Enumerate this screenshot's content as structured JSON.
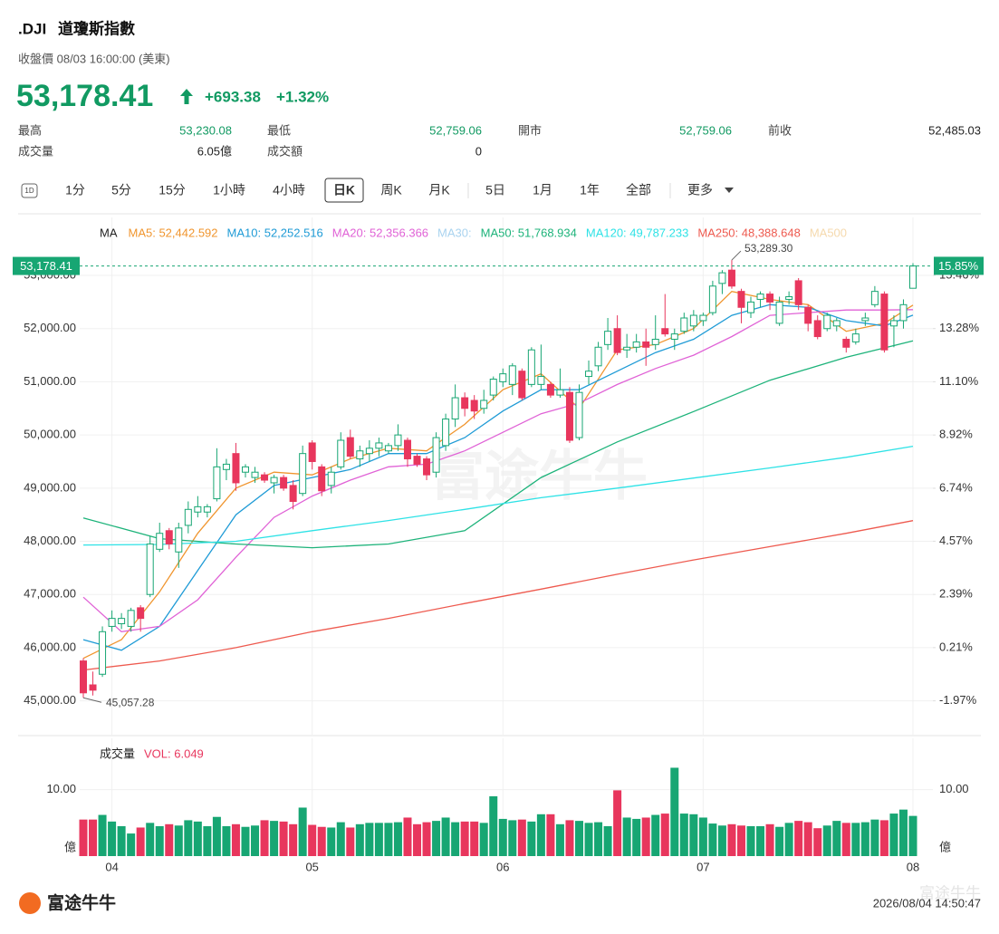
{
  "header": {
    "symbol": ".DJI",
    "name": "道瓊斯指數",
    "subtitle": "收盤價 08/03 16:00:00 (美東)",
    "change": "+693.38",
    "change_pct": "+1.32%",
    "stats": [
      {
        "label": "最高",
        "value": "53,230.08"
      },
      {
        "label": "最低",
        "value": "52,759.06"
      },
      {
        "label": "開市",
        "value": "52,759.06"
      },
      {
        "label": "前收",
        "value": "52,485.03"
      },
      {
        "label": "成交量",
        "value": "6.05億"
      },
      {
        "label": "成交額",
        "value": "0"
      }
    ]
  },
  "toolbar": {
    "icon": "1D",
    "tabs": [
      "1分",
      "5分",
      "15分",
      "1小時",
      "4小時",
      "日K",
      "周K",
      "月K",
      "5日",
      "1月",
      "1年",
      "全部",
      "更多"
    ],
    "active_tab": "日K"
  },
  "chart_data": {
    "type": "candlestick",
    "ma_title": "MA",
    "categories": [
      null,
      null,
      null,
      "04",
      null,
      null,
      null,
      null,
      null,
      null,
      null,
      null,
      null,
      null,
      null,
      null,
      null,
      null,
      null,
      null,
      null,
      null,
      null,
      null,
      "05",
      null,
      null,
      null,
      null,
      null,
      null,
      null,
      null,
      null,
      null,
      null,
      null,
      null,
      null,
      null,
      null,
      null,
      null,
      null,
      "06",
      null,
      null,
      null,
      null,
      null,
      null,
      null,
      null,
      null,
      null,
      null,
      null,
      null,
      null,
      null,
      null,
      null,
      null,
      null,
      null,
      "07",
      null,
      null,
      null,
      null,
      null,
      null,
      null,
      null,
      null,
      null,
      null,
      null,
      null,
      null,
      null,
      null,
      null,
      null,
      null,
      null,
      null,
      "08"
    ],
    "open": [
      45750,
      45300,
      45500,
      46400,
      46450,
      46400,
      46750,
      47000,
      47850,
      48200,
      47800,
      48300,
      48550,
      48550,
      48800,
      49350,
      49650,
      49300,
      49200,
      49250,
      49100,
      49200,
      49050,
      48900,
      49850,
      49400,
      49050,
      49400,
      49950,
      49550,
      49650,
      49750,
      49700,
      49800,
      49900,
      49600,
      49550,
      49300,
      49800,
      50300,
      50700,
      50650,
      50500,
      50750,
      51000,
      50950,
      51200,
      50950,
      50950,
      50950,
      50750,
      50800,
      49950,
      51100,
      51300,
      51700,
      52000,
      51600,
      51650,
      51750,
      51700,
      52000,
      51800,
      51950,
      52050,
      52150,
      52300,
      52850,
      53100,
      52700,
      52300,
      52550,
      52650,
      52100,
      52550,
      52900,
      52400,
      52150,
      52000,
      52050,
      51800,
      51750,
      52150,
      52450,
      52650,
      52050,
      52150,
      52759.06
    ],
    "close": [
      45150,
      45200,
      46300,
      46550,
      46550,
      46700,
      46550,
      47950,
      48150,
      47950,
      48250,
      48600,
      48650,
      48650,
      49400,
      49450,
      49100,
      49400,
      49300,
      49150,
      49200,
      49000,
      48750,
      49650,
      49500,
      48950,
      49300,
      49900,
      49600,
      49700,
      49750,
      49850,
      49800,
      50000,
      49550,
      49450,
      49250,
      49950,
      50300,
      50700,
      50500,
      50450,
      50650,
      51050,
      51150,
      51300,
      50700,
      51600,
      51100,
      50750,
      50850,
      49900,
      50800,
      51200,
      51650,
      51950,
      51550,
      51650,
      51750,
      51650,
      51800,
      51900,
      51900,
      52200,
      52250,
      52250,
      52800,
      53050,
      52800,
      52400,
      52500,
      52650,
      52500,
      52500,
      52600,
      52450,
      52100,
      51850,
      52250,
      52150,
      51650,
      51900,
      52200,
      52700,
      51600,
      52150,
      52450,
      53178.41
    ],
    "high": [
      45800,
      45550,
      46400,
      46700,
      46650,
      46750,
      46800,
      48100,
      48350,
      48250,
      48350,
      48750,
      48850,
      48700,
      49750,
      49550,
      49850,
      49450,
      49400,
      49300,
      49250,
      49250,
      49150,
      49800,
      49900,
      49450,
      49400,
      50050,
      50100,
      49800,
      49900,
      49950,
      49850,
      50200,
      49950,
      49650,
      49600,
      50050,
      50400,
      50950,
      50800,
      50750,
      50850,
      51100,
      51250,
      51350,
      51250,
      51650,
      51700,
      51000,
      51250,
      50900,
      50950,
      51400,
      51750,
      52200,
      52250,
      51900,
      51900,
      52000,
      52250,
      52650,
      52000,
      52300,
      52350,
      52300,
      52900,
      53100,
      53289.3,
      52750,
      52600,
      52700,
      52700,
      52600,
      52700,
      52950,
      52450,
      52250,
      52300,
      52200,
      51850,
      52000,
      52300,
      52800,
      52700,
      52250,
      52550,
      53230.08
    ],
    "low": [
      45057.28,
      45100,
      45450,
      46300,
      46350,
      46300,
      46300,
      46950,
      47800,
      47850,
      47500,
      48150,
      48450,
      48450,
      48750,
      49150,
      48950,
      49200,
      49100,
      49100,
      48900,
      48950,
      48600,
      48850,
      49350,
      48850,
      48900,
      49350,
      49550,
      49400,
      49500,
      49600,
      49650,
      49700,
      49400,
      49400,
      49150,
      49200,
      49700,
      50150,
      50350,
      50300,
      50400,
      50650,
      50900,
      50750,
      50650,
      50900,
      50850,
      50700,
      50700,
      49850,
      49900,
      50950,
      51200,
      51600,
      51500,
      51450,
      51550,
      51300,
      51600,
      51850,
      51600,
      51900,
      51950,
      52050,
      52250,
      52650,
      52750,
      52100,
      52200,
      52400,
      52350,
      52050,
      52450,
      52350,
      51950,
      51800,
      51950,
      51950,
      51550,
      51700,
      52050,
      52400,
      51550,
      51650,
      52000,
      52759.06
    ],
    "up_color": "#17a673",
    "down_color": "#e8365d",
    "high_label": "53,289.30",
    "low_label": "45,057.28",
    "last_price": {
      "value": 53178.41,
      "label": "53,178.41"
    },
    "last_change_pct": {
      "value": 15.85,
      "label": "15.85%"
    },
    "ylim": [
      44380,
      53580
    ],
    "yticks": [
      {
        "value": 45000,
        "label": "45,000.00"
      },
      {
        "value": 46000,
        "label": "46,000.00"
      },
      {
        "value": 47000,
        "label": "47,000.00"
      },
      {
        "value": 48000,
        "label": "48,000.00"
      },
      {
        "value": 49000,
        "label": "49,000.00"
      },
      {
        "value": 50000,
        "label": "50,000.00"
      },
      {
        "value": 51000,
        "label": "51,000.00"
      },
      {
        "value": 52000,
        "label": "52,000.00"
      },
      {
        "value": 53000,
        "label": "53,000.00"
      }
    ],
    "y2lim": [
      -3.32,
      16.72
    ],
    "y2ticks": [
      {
        "value": -1.97,
        "label": "-1.97%"
      },
      {
        "value": 0.21,
        "label": "0.21%"
      },
      {
        "value": 2.39,
        "label": "2.39%"
      },
      {
        "value": 4.57,
        "label": "4.57%"
      },
      {
        "value": 6.74,
        "label": "6.74%"
      },
      {
        "value": 8.92,
        "label": "8.92%"
      },
      {
        "value": 11.1,
        "label": "11.10%"
      },
      {
        "value": 13.28,
        "label": "13.28%"
      },
      {
        "value": 15.46,
        "label": "15.46%"
      }
    ],
    "grid": true,
    "series": [
      {
        "name": "MA5: 52,442.592",
        "color": "#f0952e",
        "x": [
          0,
          4,
          8,
          12,
          16,
          20,
          24,
          28,
          32,
          36,
          40,
          44,
          48,
          52,
          56,
          60,
          64,
          68,
          72,
          76,
          80,
          84,
          87
        ],
        "values": [
          45800,
          46150,
          47050,
          48150,
          49000,
          49300,
          49250,
          49550,
          49750,
          49700,
          50200,
          50850,
          51150,
          50500,
          51600,
          51700,
          52000,
          52700,
          52550,
          52450,
          51950,
          52100,
          52442.592
        ]
      },
      {
        "name": "MA10: 52,252.516",
        "color": "#1f9bd6",
        "x": [
          0,
          4,
          8,
          12,
          16,
          20,
          24,
          28,
          32,
          36,
          40,
          44,
          48,
          52,
          56,
          60,
          64,
          68,
          72,
          76,
          80,
          84,
          87
        ],
        "values": [
          46150,
          45950,
          46400,
          47450,
          48500,
          49050,
          49200,
          49350,
          49650,
          49650,
          49950,
          50450,
          50850,
          50850,
          51200,
          51550,
          51800,
          52250,
          52450,
          52400,
          52150,
          52050,
          52252.516
        ]
      },
      {
        "name": "MA20: 52,356.366",
        "color": "#e062d6",
        "x": [
          0,
          4,
          8,
          12,
          16,
          20,
          24,
          28,
          32,
          36,
          40,
          44,
          48,
          52,
          56,
          60,
          64,
          68,
          72,
          76,
          80,
          84,
          87
        ],
        "values": [
          46950,
          46300,
          46400,
          46900,
          47700,
          48450,
          48850,
          49150,
          49400,
          49450,
          49700,
          50050,
          50400,
          50600,
          50950,
          51250,
          51500,
          51850,
          52250,
          52300,
          52350,
          52350,
          52356.366
        ]
      },
      {
        "name": "MA30:",
        "color": "#a9d3ef",
        "x": [],
        "values": []
      },
      {
        "name": "MA50: 51,768.934",
        "color": "#1db37a",
        "x": [
          0,
          8,
          16,
          24,
          32,
          40,
          48,
          56,
          64,
          72,
          80,
          87
        ],
        "values": [
          48440,
          48050,
          47950,
          47880,
          47950,
          48200,
          49200,
          49870,
          50440,
          51030,
          51460,
          51768.934
        ]
      },
      {
        "name": "MA120: 49,787.233",
        "color": "#2ee2e6",
        "x": [
          0,
          8,
          16,
          24,
          32,
          40,
          48,
          56,
          64,
          72,
          80,
          87
        ],
        "values": [
          47930,
          47940,
          48000,
          48200,
          48390,
          48600,
          48820,
          49000,
          49190,
          49380,
          49580,
          49787.233
        ]
      },
      {
        "name": "MA250: 48,388.648",
        "color": "#ee5a4f",
        "x": [
          0,
          8,
          16,
          24,
          32,
          40,
          48,
          56,
          64,
          72,
          80,
          87
        ],
        "values": [
          45580,
          45750,
          46000,
          46300,
          46550,
          46830,
          47100,
          47380,
          47650,
          47900,
          48150,
          48388.648
        ]
      },
      {
        "name": "MA500",
        "color": "#f5d9ad",
        "x": [],
        "values": []
      }
    ],
    "volume": {
      "title": "成交量",
      "label": "VOL: 6.049",
      "label_color": "#e8365d",
      "values": [
        5.5,
        5.5,
        6.2,
        5.2,
        4.5,
        3.4,
        4.3,
        5.0,
        4.5,
        4.8,
        4.6,
        5.4,
        5.2,
        4.5,
        5.9,
        4.5,
        4.8,
        4.4,
        4.6,
        5.4,
        5.3,
        5.2,
        4.8,
        7.3,
        4.7,
        4.4,
        4.3,
        5.1,
        4.3,
        4.8,
        5.0,
        5.0,
        5.0,
        5.1,
        5.8,
        4.8,
        5.1,
        5.3,
        5.8,
        5.1,
        5.2,
        5.2,
        5.0,
        9.0,
        5.6,
        5.4,
        5.5,
        5.2,
        6.3,
        6.3,
        4.8,
        5.4,
        5.3,
        5.0,
        5.1,
        4.5,
        9.9,
        5.8,
        5.6,
        5.8,
        6.2,
        6.4,
        13.3,
        6.4,
        6.3,
        5.8,
        4.9,
        4.6,
        4.8,
        4.6,
        4.5,
        4.5,
        4.8,
        4.4,
        5.0,
        5.3,
        5.1,
        4.2,
        4.6,
        5.3,
        5.0,
        5.0,
        5.1,
        5.5,
        5.4,
        6.4,
        7.0,
        6.049
      ],
      "ylim": [
        0,
        13.5
      ],
      "yticks": [
        {
          "value": 0,
          "label": "億"
        },
        {
          "value": 10,
          "label": "10.00"
        }
      ]
    }
  },
  "footer": {
    "brand": "富途牛牛",
    "timestamp": "2026/08/04 14:50:47",
    "watermark": "富途牛牛"
  }
}
